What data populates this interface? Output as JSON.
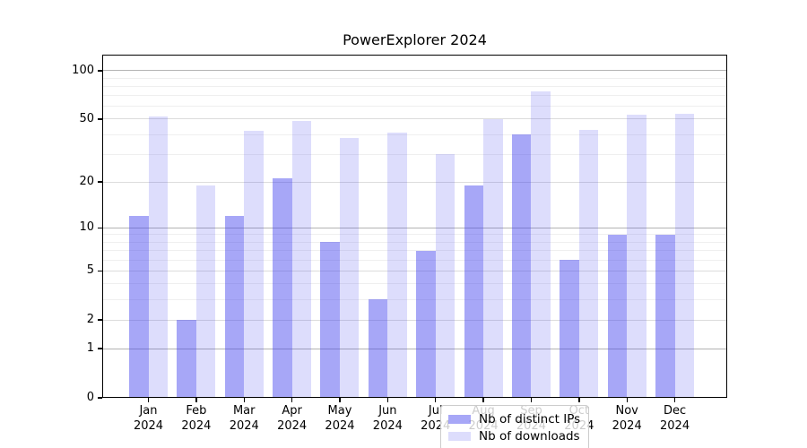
{
  "chart_data": {
    "type": "bar",
    "title": "PowerExplorer 2024",
    "categories": [
      "Jan 2024",
      "Feb 2024",
      "Mar 2024",
      "Apr 2024",
      "May 2024",
      "Jun 2024",
      "Jul 2024",
      "Aug 2024",
      "Sep 2024",
      "Oct 2024",
      "Nov 2024",
      "Dec 2024"
    ],
    "series": [
      {
        "name": "Nb of distinct IPs",
        "color": "rgba(68,68,238,0.47)",
        "values": [
          12,
          2,
          12,
          21,
          8,
          3,
          7,
          19,
          40,
          6,
          9,
          9
        ]
      },
      {
        "name": "Nb of downloads",
        "color": "rgba(68,68,238,0.18)",
        "values": [
          52,
          19,
          42,
          49,
          38,
          41,
          30,
          50,
          74,
          43,
          53,
          54
        ]
      }
    ],
    "xlabel": "",
    "ylabel": "",
    "yscale": "log1p",
    "ylim": [
      0,
      126
    ],
    "yticks": [
      0,
      1,
      2,
      5,
      10,
      20,
      50,
      100
    ],
    "grid": true,
    "grid_minor_values": [
      3,
      4,
      6,
      7,
      8,
      9,
      30,
      40,
      60,
      70,
      80,
      90
    ],
    "grid_emphasis_values": [
      1,
      10,
      100
    ],
    "legend_position": "lower center"
  },
  "colors": {
    "bar_dark_flat": "#a9a9f8",
    "bar_light_flat": "#dbdbf9",
    "grid_minor": "#efefef",
    "grid_mid": "#dcdcdc",
    "grid_emphasis": "#b3b3b3",
    "spine": "#000000"
  }
}
